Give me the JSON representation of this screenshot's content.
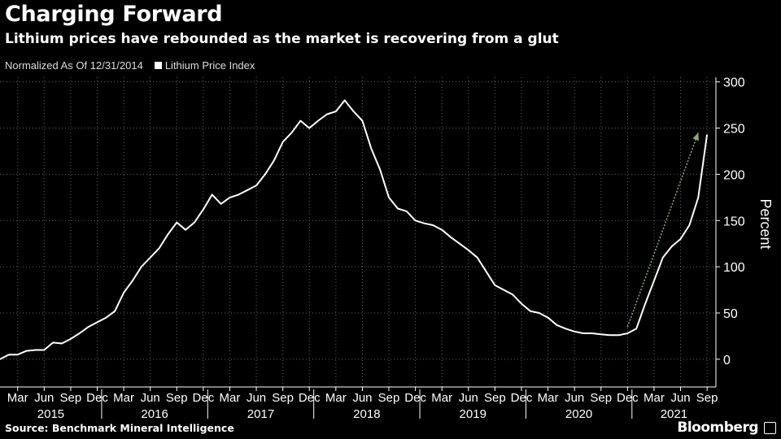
{
  "header": {
    "title": "Charging Forward",
    "subtitle": "Lithium prices have rebounded as the market is recovering from a glut"
  },
  "legend": {
    "note": "Normalized As Of 12/31/2014",
    "series_label": "Lithium Price Index"
  },
  "footer": {
    "source": "Source: Benchmark Mineral Intelligence",
    "brand": "Bloomberg"
  },
  "colors": {
    "background": "#000000",
    "line": "#ffffff",
    "arrow": "#8fae6e"
  },
  "chart_data": {
    "type": "line",
    "ylabel": "Percent",
    "ylim": [
      -30,
      305
    ],
    "yticks": [
      0,
      50,
      100,
      150,
      200,
      250,
      300
    ],
    "xlim": [
      "2015-01",
      "2021-10"
    ],
    "grid": true,
    "month_ticks": [
      "Mar",
      "Jun",
      "Sep",
      "Dec",
      "Mar",
      "Jun",
      "Sep",
      "Dec",
      "Mar",
      "Jun",
      "Sep",
      "Dec",
      "Mar",
      "Jun",
      "Sep",
      "Dec",
      "Mar",
      "Jun",
      "Sep",
      "Dec",
      "Mar",
      "Jun",
      "Sep",
      "Dec",
      "Mar",
      "Jun",
      "Sep"
    ],
    "year_labels": [
      "2015",
      "2016",
      "2017",
      "2018",
      "2019",
      "2020",
      "2021"
    ],
    "series": [
      {
        "name": "Lithium Price Index",
        "x": [
          "2015-01",
          "2015-02",
          "2015-03",
          "2015-04",
          "2015-05",
          "2015-06",
          "2015-07",
          "2015-08",
          "2015-09",
          "2015-10",
          "2015-11",
          "2015-12",
          "2016-01",
          "2016-02",
          "2016-03",
          "2016-04",
          "2016-05",
          "2016-06",
          "2016-07",
          "2016-08",
          "2016-09",
          "2016-10",
          "2016-11",
          "2016-12",
          "2017-01",
          "2017-02",
          "2017-03",
          "2017-04",
          "2017-05",
          "2017-06",
          "2017-07",
          "2017-08",
          "2017-09",
          "2017-10",
          "2017-11",
          "2017-12",
          "2018-01",
          "2018-02",
          "2018-03",
          "2018-04",
          "2018-05",
          "2018-06",
          "2018-07",
          "2018-08",
          "2018-09",
          "2018-10",
          "2018-11",
          "2018-12",
          "2019-01",
          "2019-02",
          "2019-03",
          "2019-04",
          "2019-05",
          "2019-06",
          "2019-07",
          "2019-08",
          "2019-09",
          "2019-10",
          "2019-11",
          "2019-12",
          "2020-01",
          "2020-02",
          "2020-03",
          "2020-04",
          "2020-05",
          "2020-06",
          "2020-07",
          "2020-08",
          "2020-09",
          "2020-10",
          "2020-11",
          "2020-12",
          "2021-01",
          "2021-02",
          "2021-03",
          "2021-04",
          "2021-05",
          "2021-06",
          "2021-07",
          "2021-08",
          "2021-09"
        ],
        "values": [
          0,
          5,
          5,
          9,
          10,
          10,
          18,
          17,
          22,
          28,
          35,
          40,
          45,
          52,
          72,
          85,
          100,
          110,
          120,
          135,
          148,
          140,
          148,
          162,
          178,
          168,
          175,
          178,
          183,
          188,
          200,
          215,
          235,
          245,
          258,
          250,
          258,
          265,
          268,
          280,
          268,
          258,
          228,
          205,
          175,
          163,
          160,
          150,
          147,
          145,
          140,
          132,
          125,
          118,
          110,
          95,
          80,
          75,
          70,
          60,
          52,
          50,
          45,
          37,
          33,
          30,
          28,
          28,
          27,
          26,
          26,
          28,
          33,
          60,
          85,
          110,
          122,
          130,
          145,
          175,
          243
        ]
      }
    ],
    "annotations": [
      {
        "type": "arrow",
        "x_start": "2020-12",
        "y_start": 35,
        "x_end": "2021-08",
        "y_end": 245
      }
    ]
  }
}
